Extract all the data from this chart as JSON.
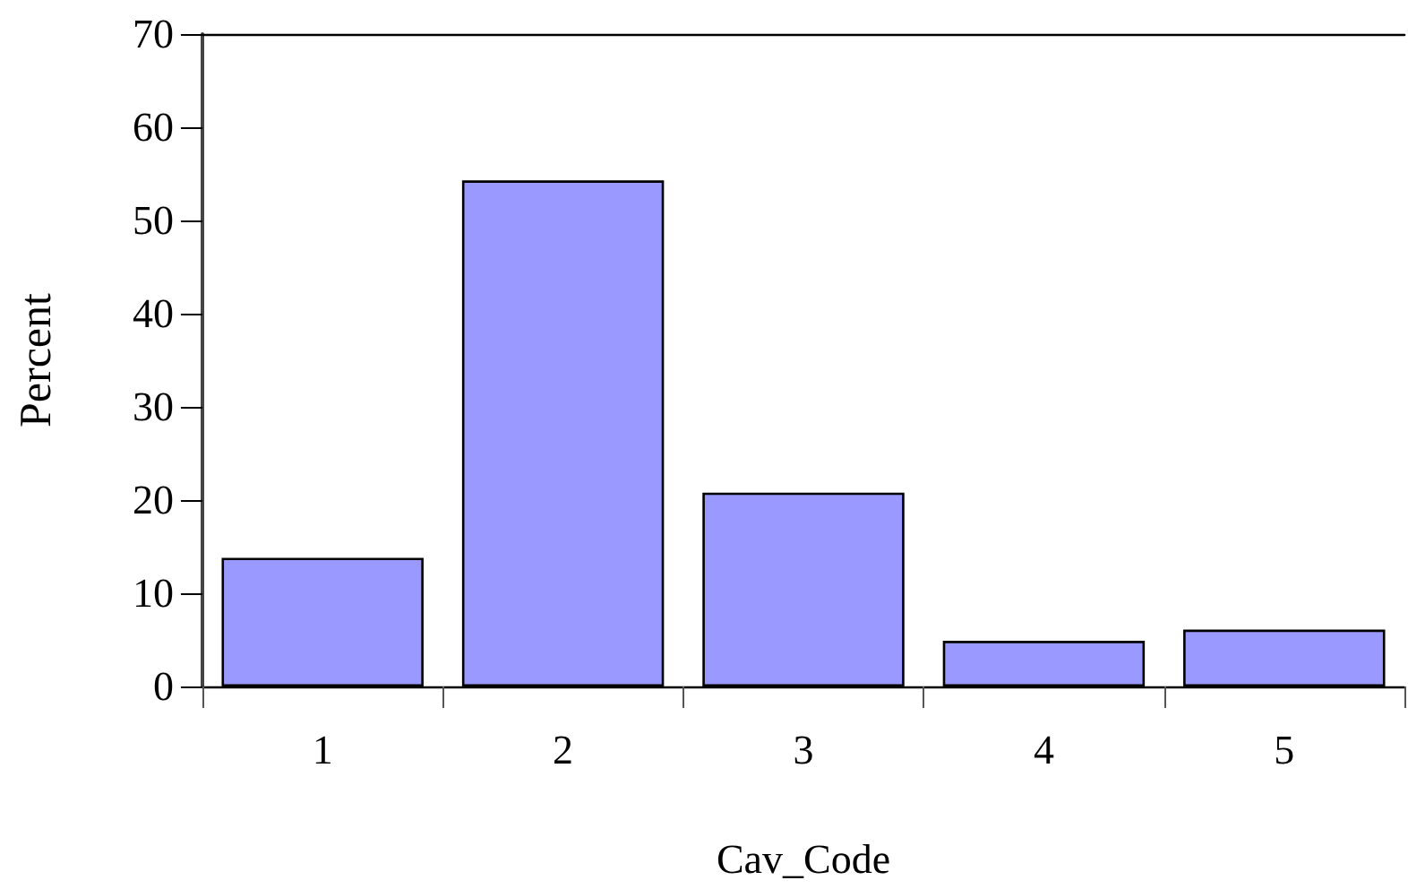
{
  "chart_data": {
    "type": "bar",
    "xlabel": "Cav_Code",
    "ylabel": "Percent",
    "categories": [
      "1",
      "2",
      "3",
      "4",
      "5"
    ],
    "values": [
      13.8,
      54.3,
      20.8,
      4.9,
      6.1
    ],
    "color": "#9999ff",
    "ylim": [
      0,
      70
    ],
    "yticks": [
      0,
      10,
      20,
      30,
      40,
      50,
      60,
      70
    ],
    "grid": false
  }
}
